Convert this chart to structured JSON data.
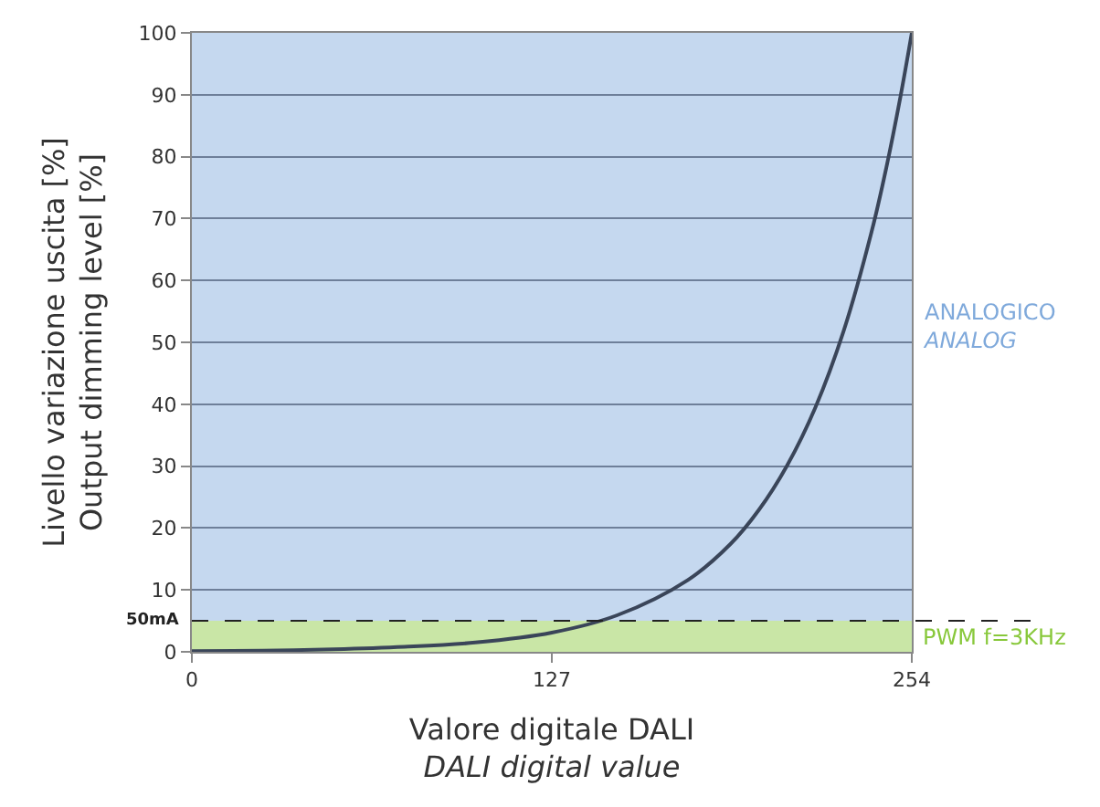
{
  "chart_data": {
    "type": "line",
    "xlabel": "Valore digitale DALI\nDALI digital value",
    "ylabel": "Livello variazione uscita [%]\nOutput dimming level [%]",
    "x": [
      0,
      25,
      50,
      75,
      100,
      127,
      150,
      175,
      190,
      200,
      210,
      220,
      230,
      240,
      245,
      250,
      254
    ],
    "series": [
      {
        "color": "#3a4559",
        "values": [
          0.1,
          0.2,
          0.4,
          0.8,
          1.5,
          3.1,
          5.9,
          11.6,
          17.4,
          22.9,
          30.1,
          39.5,
          51.9,
          68.2,
          78.2,
          89.7,
          100
        ]
      }
    ],
    "xlim": [
      0,
      254
    ],
    "xticks": [
      0,
      127,
      254
    ],
    "ylim": [
      0,
      100
    ],
    "yticks": [
      0,
      10,
      20,
      30,
      40,
      50,
      60,
      70,
      80,
      90,
      100
    ],
    "grid": "y",
    "marker": "none",
    "line_style": "solid",
    "bands": [
      {
        "axis": "y",
        "from": 5,
        "to": 100,
        "label": "ANALOGICO\nANALOG",
        "color": "#c5d8ef"
      },
      {
        "axis": "y",
        "from": 0,
        "to": 5,
        "label": "PWM f=3KHz",
        "color": "#c9e6a6"
      }
    ],
    "ref_lines": [
      {
        "axis": "y",
        "value": 5,
        "label": "50mA",
        "color": "#222222",
        "line_style": "dashed"
      }
    ]
  }
}
